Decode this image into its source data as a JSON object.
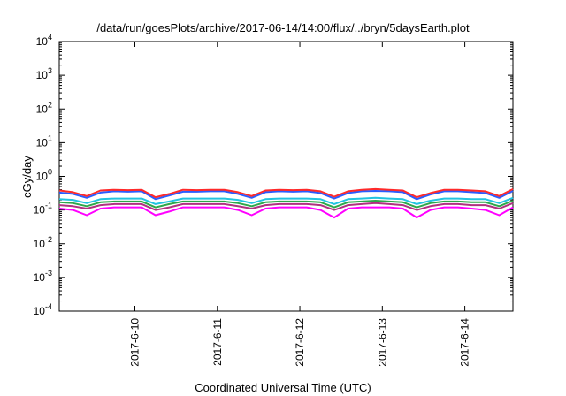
{
  "chart_data": {
    "type": "line",
    "title": "/data/run/goesPlots/archive/2017-06-14/14:00/flux/../bryn/5daysEarth.plot",
    "xlabel": "Coordinated Universal Time (UTC)",
    "ylabel": "cGy/day",
    "yscale": "log",
    "ylim": [
      0.0001,
      10000
    ],
    "yticks": [
      {
        "value": 0.0001,
        "base": "10",
        "exp": "-4"
      },
      {
        "value": 0.001,
        "base": "10",
        "exp": "-3"
      },
      {
        "value": 0.01,
        "base": "10",
        "exp": "-2"
      },
      {
        "value": 0.1,
        "base": "10",
        "exp": "-1"
      },
      {
        "value": 1,
        "base": "10",
        "exp": "0"
      },
      {
        "value": 10,
        "base": "10",
        "exp": "1"
      },
      {
        "value": 100,
        "base": "10",
        "exp": "2"
      },
      {
        "value": 1000,
        "base": "10",
        "exp": "3"
      },
      {
        "value": 10000,
        "base": "10",
        "exp": "4"
      }
    ],
    "xlim": [
      "2017-06-09T02:00",
      "2017-06-14T14:00"
    ],
    "xticks": [
      {
        "value": "2017-06-10T00:00",
        "label": "2017-6-10"
      },
      {
        "value": "2017-06-11T00:00",
        "label": "2017-6-11"
      },
      {
        "value": "2017-06-12T00:00",
        "label": "2017-6-12"
      },
      {
        "value": "2017-06-13T00:00",
        "label": "2017-6-13"
      },
      {
        "value": "2017-06-14T00:00",
        "label": "2017-6-14"
      }
    ],
    "grid": false,
    "x": [
      "2017-06-09T02:00",
      "2017-06-09T06:00",
      "2017-06-09T10:00",
      "2017-06-09T14:00",
      "2017-06-09T18:00",
      "2017-06-09T22:00",
      "2017-06-10T02:00",
      "2017-06-10T06:00",
      "2017-06-10T10:00",
      "2017-06-10T14:00",
      "2017-06-10T18:00",
      "2017-06-10T22:00",
      "2017-06-11T02:00",
      "2017-06-11T06:00",
      "2017-06-11T10:00",
      "2017-06-11T14:00",
      "2017-06-11T18:00",
      "2017-06-11T22:00",
      "2017-06-12T02:00",
      "2017-06-12T06:00",
      "2017-06-12T10:00",
      "2017-06-12T14:00",
      "2017-06-12T18:00",
      "2017-06-12T22:00",
      "2017-06-13T02:00",
      "2017-06-13T06:00",
      "2017-06-13T10:00",
      "2017-06-13T14:00",
      "2017-06-13T18:00",
      "2017-06-13T22:00",
      "2017-06-14T02:00",
      "2017-06-14T06:00",
      "2017-06-14T10:00",
      "2017-06-14T14:00"
    ],
    "series": [
      {
        "color": "#ff2a2a",
        "values": [
          0.38,
          0.34,
          0.26,
          0.38,
          0.4,
          0.39,
          0.4,
          0.24,
          0.3,
          0.4,
          0.39,
          0.4,
          0.4,
          0.34,
          0.26,
          0.38,
          0.4,
          0.39,
          0.4,
          0.36,
          0.25,
          0.36,
          0.4,
          0.42,
          0.4,
          0.38,
          0.24,
          0.32,
          0.4,
          0.4,
          0.38,
          0.36,
          0.26,
          0.42
        ]
      },
      {
        "color": "#2a5cff",
        "values": [
          0.33,
          0.3,
          0.23,
          0.33,
          0.36,
          0.35,
          0.36,
          0.21,
          0.27,
          0.35,
          0.35,
          0.36,
          0.36,
          0.3,
          0.23,
          0.34,
          0.36,
          0.35,
          0.36,
          0.32,
          0.22,
          0.32,
          0.36,
          0.37,
          0.36,
          0.34,
          0.21,
          0.29,
          0.36,
          0.36,
          0.34,
          0.32,
          0.23,
          0.37
        ]
      },
      {
        "color": "#22c4e0",
        "values": [
          0.21,
          0.2,
          0.16,
          0.21,
          0.22,
          0.22,
          0.22,
          0.15,
          0.18,
          0.22,
          0.22,
          0.22,
          0.22,
          0.2,
          0.16,
          0.21,
          0.22,
          0.22,
          0.22,
          0.21,
          0.15,
          0.21,
          0.22,
          0.23,
          0.22,
          0.21,
          0.15,
          0.19,
          0.22,
          0.22,
          0.21,
          0.21,
          0.16,
          0.23
        ]
      },
      {
        "color": "#2ea84a",
        "values": [
          0.17,
          0.16,
          0.13,
          0.17,
          0.18,
          0.18,
          0.18,
          0.12,
          0.15,
          0.18,
          0.18,
          0.18,
          0.18,
          0.16,
          0.13,
          0.17,
          0.18,
          0.18,
          0.18,
          0.17,
          0.12,
          0.17,
          0.18,
          0.19,
          0.18,
          0.17,
          0.12,
          0.16,
          0.18,
          0.18,
          0.17,
          0.17,
          0.13,
          0.19
        ]
      },
      {
        "color": "#b03080",
        "values": [
          0.14,
          0.13,
          0.11,
          0.14,
          0.15,
          0.15,
          0.15,
          0.1,
          0.12,
          0.15,
          0.15,
          0.15,
          0.15,
          0.13,
          0.11,
          0.14,
          0.15,
          0.15,
          0.15,
          0.14,
          0.1,
          0.14,
          0.15,
          0.16,
          0.15,
          0.14,
          0.1,
          0.13,
          0.15,
          0.15,
          0.14,
          0.14,
          0.11,
          0.16
        ]
      },
      {
        "color": "#ff00ff",
        "values": [
          0.11,
          0.1,
          0.07,
          0.11,
          0.12,
          0.12,
          0.12,
          0.07,
          0.09,
          0.12,
          0.12,
          0.12,
          0.12,
          0.1,
          0.07,
          0.11,
          0.12,
          0.12,
          0.12,
          0.1,
          0.06,
          0.11,
          0.12,
          0.12,
          0.12,
          0.11,
          0.06,
          0.1,
          0.12,
          0.12,
          0.11,
          0.1,
          0.07,
          0.12
        ]
      }
    ]
  }
}
